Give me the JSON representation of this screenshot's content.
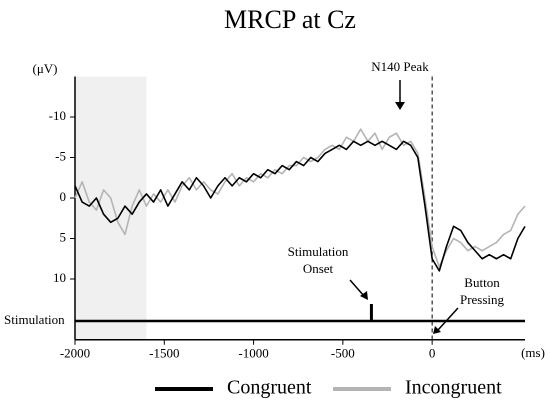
{
  "chart_data": {
    "type": "line",
    "title": "MRCP at Cz",
    "x_label": "(ms)",
    "y_label": "(μV)",
    "xlim": [
      -2000,
      520
    ],
    "xticks": [
      -2000,
      -1500,
      -1000,
      -500,
      0
    ],
    "ylim": [
      -15,
      17.5
    ],
    "yticks": [
      -10,
      -5,
      0,
      5,
      10
    ],
    "y_inverted": true,
    "baseline": [
      -2000,
      -1600
    ],
    "response_time": 0,
    "stimulus_time": -340,
    "stimulation_label": "Stimulation",
    "annotations": [
      {
        "text": [
          "N140 Peak"
        ]
      },
      {
        "text": [
          "Stimulation",
          "Onset"
        ]
      },
      {
        "text": [
          "Button",
          "Pressing"
        ]
      }
    ],
    "x": [
      -2000,
      -1960,
      -1920,
      -1880,
      -1840,
      -1800,
      -1760,
      -1720,
      -1680,
      -1640,
      -1600,
      -1560,
      -1520,
      -1480,
      -1440,
      -1400,
      -1360,
      -1320,
      -1280,
      -1240,
      -1200,
      -1160,
      -1120,
      -1080,
      -1040,
      -1000,
      -960,
      -920,
      -880,
      -840,
      -800,
      -760,
      -720,
      -680,
      -640,
      -600,
      -560,
      -520,
      -480,
      -440,
      -400,
      -360,
      -320,
      -280,
      -240,
      -200,
      -160,
      -120,
      -80,
      -40,
      0,
      40,
      80,
      120,
      160,
      200,
      240,
      280,
      320,
      360,
      400,
      440,
      480,
      520
    ],
    "series": [
      {
        "name": "Incongruent",
        "color": "#b4b4b4",
        "values": [
          0,
          -2,
          0.5,
          1.5,
          -1,
          0,
          3,
          4.5,
          1,
          -1,
          1,
          -0.5,
          0.5,
          -1,
          0.5,
          -1.5,
          -2.5,
          -1,
          -2,
          -1,
          -0.5,
          -2,
          -3,
          -1.5,
          -2.5,
          -2,
          -3,
          -2.5,
          -3.5,
          -3,
          -4,
          -4,
          -5,
          -4.5,
          -5,
          -6,
          -6.5,
          -6,
          -7.5,
          -7,
          -8.5,
          -7,
          -8,
          -6,
          -7.5,
          -8,
          -6.5,
          -7,
          -5.5,
          0,
          6,
          8.5,
          6.5,
          5,
          5.5,
          6.5,
          6,
          6.5,
          6,
          5.5,
          4.5,
          4,
          2,
          1
        ]
      },
      {
        "name": "Congruent",
        "color": "#000000",
        "values": [
          -1.5,
          0.5,
          1,
          0,
          2,
          3,
          2.5,
          1,
          2,
          0.5,
          -0.5,
          0.5,
          -1,
          1,
          -0.5,
          -2,
          -1,
          -2.5,
          -1.5,
          0,
          -1.5,
          -2.5,
          -1.5,
          -2.5,
          -2,
          -3,
          -2.5,
          -3.5,
          -3,
          -4,
          -3.5,
          -4.5,
          -4,
          -5,
          -4.5,
          -5.5,
          -6,
          -6.5,
          -6,
          -7,
          -6.5,
          -7,
          -6.5,
          -7,
          -6.5,
          -6,
          -7,
          -6.5,
          -5,
          1,
          7.5,
          9,
          6,
          3.5,
          4,
          5.5,
          6.5,
          7.5,
          7,
          7.5,
          7,
          7.5,
          5,
          3.5
        ]
      }
    ]
  }
}
